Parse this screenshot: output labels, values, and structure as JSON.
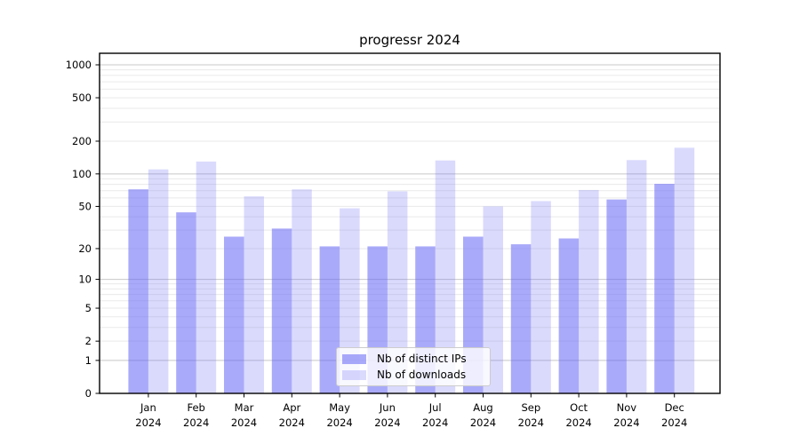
{
  "chart_data": {
    "type": "bar",
    "title": "progressr 2024",
    "categories": [
      {
        "month": "Jan",
        "year": "2024"
      },
      {
        "month": "Feb",
        "year": "2024"
      },
      {
        "month": "Mar",
        "year": "2024"
      },
      {
        "month": "Apr",
        "year": "2024"
      },
      {
        "month": "May",
        "year": "2024"
      },
      {
        "month": "Jun",
        "year": "2024"
      },
      {
        "month": "Jul",
        "year": "2024"
      },
      {
        "month": "Aug",
        "year": "2024"
      },
      {
        "month": "Sep",
        "year": "2024"
      },
      {
        "month": "Oct",
        "year": "2024"
      },
      {
        "month": "Nov",
        "year": "2024"
      },
      {
        "month": "Dec",
        "year": "2024"
      }
    ],
    "series": [
      {
        "name": "Nb of distinct IPs",
        "color": "rgba(100,100,245,0.55)",
        "values": [
          72,
          44,
          26,
          31,
          21,
          21,
          21,
          26,
          22,
          25,
          58,
          81
        ]
      },
      {
        "name": "Nb of downloads",
        "color": "rgba(100,100,245,0.24)",
        "values": [
          110,
          130,
          62,
          72,
          48,
          69,
          133,
          50,
          56,
          71,
          134,
          174
        ]
      }
    ],
    "xlabel": "",
    "ylabel": "",
    "y_scale": "log1p",
    "y_ticks": [
      0,
      1,
      2,
      5,
      10,
      20,
      50,
      100,
      200,
      500,
      1000
    ],
    "ylim": [
      0,
      1275
    ],
    "grid": true,
    "grid_major_color": "#c8c8c8",
    "grid_minor_color": "#eaeaea",
    "spine_color": "#000000",
    "legend_position": "bottom-center"
  }
}
